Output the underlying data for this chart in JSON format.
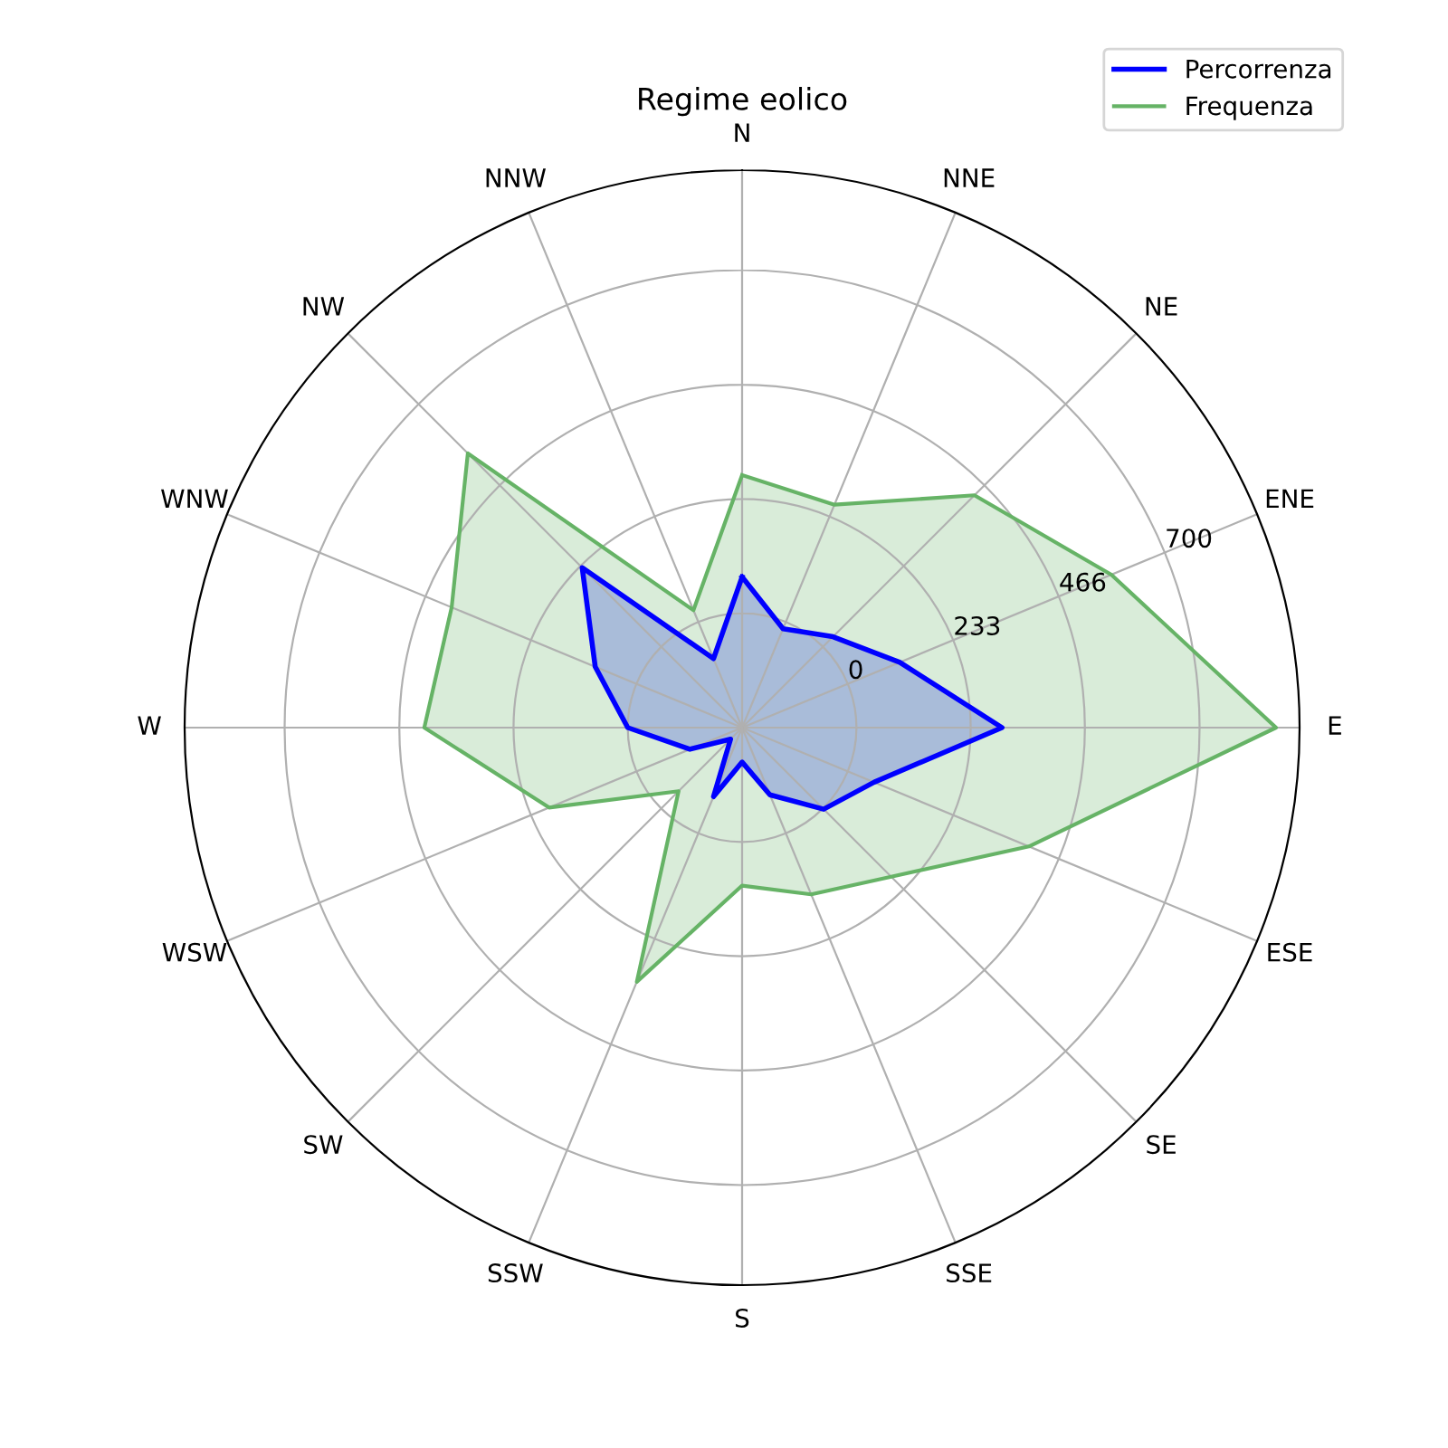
{
  "chart_data": {
    "type": "radar",
    "title": "Regime eolico",
    "categories": [
      "N",
      "NNE",
      "NE",
      "ENE",
      "E",
      "ESE",
      "SE",
      "SSE",
      "S",
      "SSW",
      "SW",
      "WSW",
      "W",
      "WNW",
      "NW",
      "NNW"
    ],
    "series": [
      {
        "name": "Percorrenza",
        "color": "#0000ff",
        "values": [
          74,
          -15,
          29,
          115,
          297,
          58,
          2,
          -85,
          -163,
          -81,
          -200,
          -118,
          0,
          91,
          228,
          -81
        ]
      },
      {
        "name": "Frequenza",
        "color": "#66b366",
        "values": [
          282,
          259,
          437,
          582,
          856,
          400,
          197,
          135,
          89,
          328,
          -50,
          193,
          415,
          408,
          558,
          26
        ]
      }
    ],
    "ylim": [
      -233.3,
      904
    ],
    "yticks": [
      0,
      233,
      466,
      700
    ],
    "grid": true,
    "legend": "top right",
    "marker": "none",
    "line_style": "solid"
  }
}
